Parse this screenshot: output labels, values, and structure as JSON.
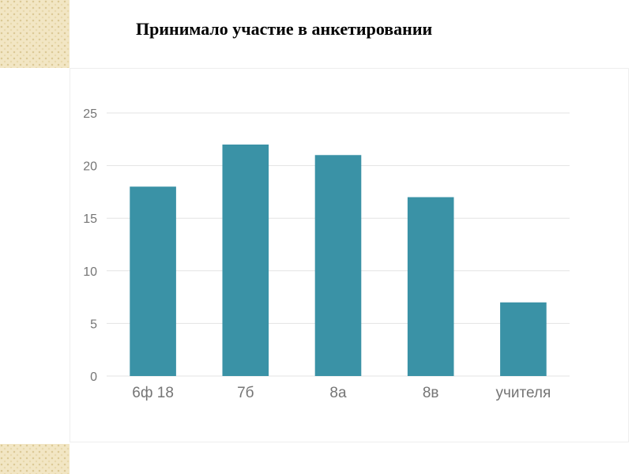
{
  "slide": {
    "title": "Принимало участие в анкетировании"
  },
  "colors": {
    "bar": "#3a92a6",
    "gridline": "#e3e3e3",
    "axis_text": "#757575",
    "corner_decoration": "#f2e6c4"
  },
  "chart_data": {
    "type": "bar",
    "title": "",
    "xlabel": "",
    "ylabel": "",
    "categories": [
      "6ф 18",
      "7б",
      "8а",
      "8в",
      "учителя"
    ],
    "values": [
      18,
      22,
      21,
      17,
      7
    ],
    "ylim": [
      0,
      25
    ],
    "yticks": [
      0,
      5,
      10,
      15,
      20,
      25
    ],
    "grid": true,
    "legend": "none"
  }
}
